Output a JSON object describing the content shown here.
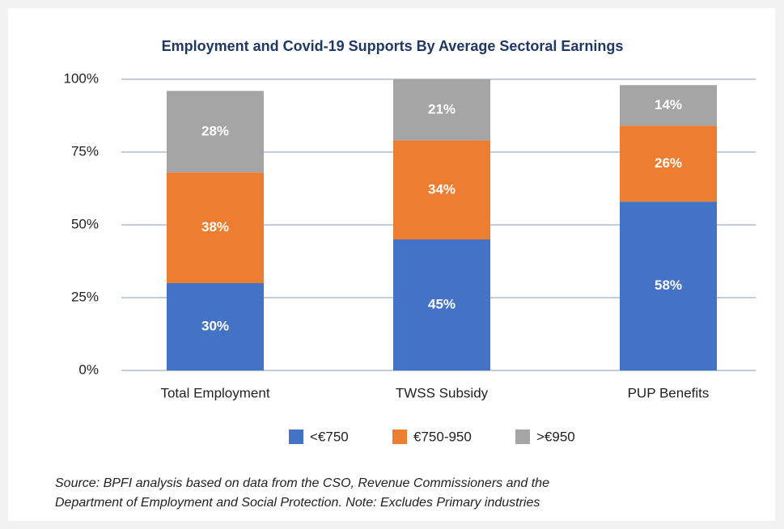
{
  "chart_data": {
    "type": "stacked_bar",
    "title": "Employment and Covid-19 Supports By Average Sectoral Earnings",
    "categories": [
      "Total Employment",
      "TWSS Subsidy",
      "PUP Benefits"
    ],
    "series": [
      {
        "name": "<€750",
        "color": "#4472c4",
        "values": [
          30,
          45,
          58
        ],
        "value_labels": [
          "30%",
          "45%",
          "58%"
        ]
      },
      {
        "name": "€750-950",
        "color": "#ed7d31",
        "values": [
          38,
          34,
          26
        ],
        "value_labels": [
          "38%",
          "34%",
          "26%"
        ]
      },
      {
        "name": ">€950",
        "color": "#a5a5a5",
        "values": [
          28,
          21,
          14
        ],
        "value_labels": [
          "28%",
          "21%",
          "14%"
        ]
      }
    ],
    "ylim": [
      0,
      100
    ],
    "yticks": [
      {
        "value": 0,
        "label": "0%"
      },
      {
        "value": 25,
        "label": "25%"
      },
      {
        "value": 50,
        "label": "50%"
      },
      {
        "value": 75,
        "label": "75%"
      },
      {
        "value": 100,
        "label": "100%"
      }
    ],
    "grid": true,
    "legend": "bottom",
    "source": [
      "Source: BPFI analysis based on data from the CSO, Revenue Commissioners and the",
      "Department of Employment and Social Protection. Note: Excludes Primary industries"
    ]
  }
}
